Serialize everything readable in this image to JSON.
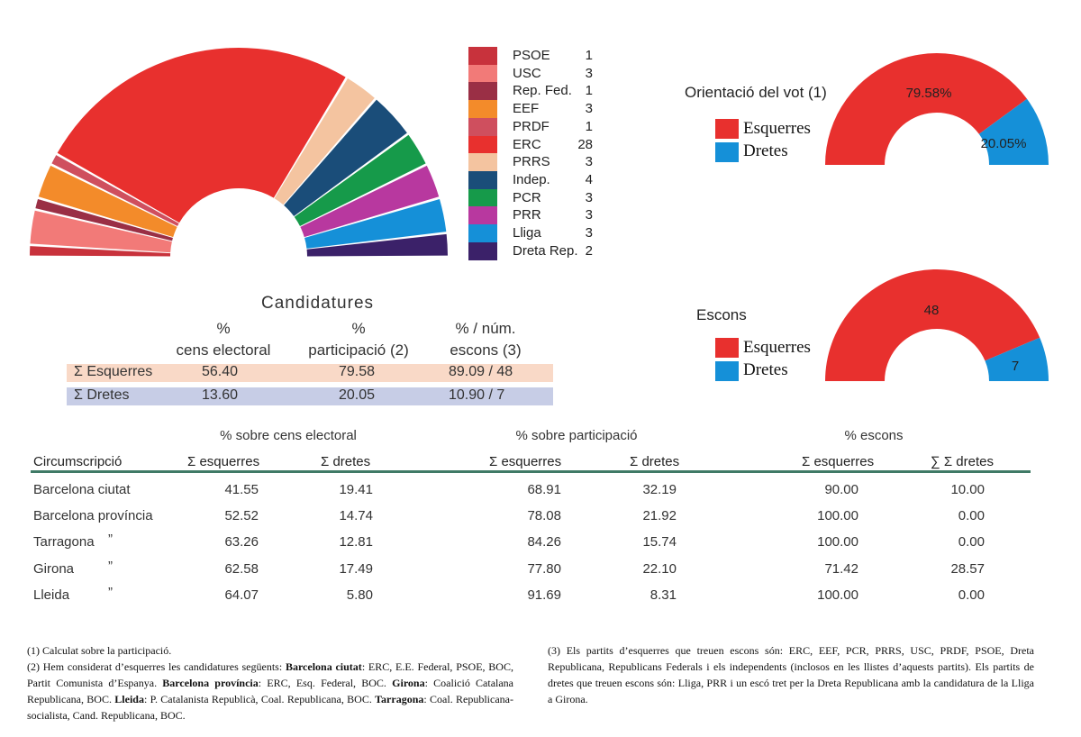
{
  "colors": {
    "PSOE": "#c8323c",
    "USC": "#f27a78",
    "Rep. Fed.": "#9a2f45",
    "EEF": "#f38b2a",
    "PRDF": "#cf4f5e",
    "ERC": "#e8302e",
    "PRRS": "#f4c4a0",
    "Indep.": "#1a4d79",
    "PCR": "#169a4a",
    "PRR": "#b8389f",
    "Lliga": "#1590d8",
    "Dreta Rep.": "#3b2169",
    "esquerres": "#e8302e",
    "dretes": "#1590d8",
    "esq_band": "#f9d9c7",
    "dre_band": "#c7cde6",
    "rule": "#3f7a66"
  },
  "chart_data": [
    {
      "type": "pie",
      "subtype": "parliament-half-donut",
      "legend_position": "right",
      "categories": [
        "PSOE",
        "USC",
        "Rep. Fed.",
        "EEF",
        "PRDF",
        "ERC",
        "PRRS",
        "Indep.",
        "PCR",
        "PRR",
        "Lliga",
        "Dreta Rep."
      ],
      "values": [
        1,
        3,
        1,
        3,
        1,
        28,
        3,
        4,
        3,
        3,
        3,
        2
      ],
      "legend": [
        {
          "name": "PSOE",
          "seats": "1"
        },
        {
          "name": "USC",
          "seats": "3"
        },
        {
          "name": "Rep. Fed.",
          "seats": "1"
        },
        {
          "name": "EEF",
          "seats": "3"
        },
        {
          "name": "PRDF",
          "seats": "1"
        },
        {
          "name": "ERC",
          "seats": "28"
        },
        {
          "name": "PRRS",
          "seats": "3"
        },
        {
          "name": "Indep.",
          "seats": "4"
        },
        {
          "name": "PCR",
          "seats": "3"
        },
        {
          "name": "PRR",
          "seats": "3"
        },
        {
          "name": "Lliga",
          "seats": "3"
        },
        {
          "name": "Dreta Rep.",
          "seats": "2"
        }
      ]
    },
    {
      "type": "pie",
      "subtype": "half-donut",
      "title": "Orientació del vot (1)",
      "categories": [
        "Esquerres",
        "Dretes"
      ],
      "values": [
        79.58,
        20.05
      ],
      "labels": [
        "79.58%",
        "20.05%"
      ]
    },
    {
      "type": "pie",
      "subtype": "half-donut",
      "title": "Escons",
      "categories": [
        "Esquerres",
        "Dretes"
      ],
      "values": [
        48,
        7
      ],
      "labels": [
        "48",
        "7"
      ]
    },
    {
      "type": "table",
      "title": "Candidatures",
      "headers": [
        [
          "%",
          "cens electoral"
        ],
        [
          "%",
          "participació (2)"
        ],
        [
          "% / núm.",
          "escons (3)"
        ]
      ],
      "rows": [
        {
          "label": "Σ Esquerres",
          "values": [
            "56.40",
            "79.58",
            "89.09 / 48"
          ]
        },
        {
          "label": "Σ Dretes",
          "values": [
            "13.60",
            "20.05",
            "10.90 / 7"
          ]
        }
      ]
    },
    {
      "type": "table",
      "groups": [
        "% sobre cens electoral",
        "% sobre participació",
        "% escons"
      ],
      "headers": [
        "Circumscripció",
        "Σ esquerres",
        "Σ dretes",
        "Σ esquerres",
        "Σ dretes",
        "Σ esquerres",
        "∑ Σ dretes"
      ],
      "rows": [
        {
          "name": "Barcelona ciutat",
          "ditto": "",
          "values": [
            "41.55",
            "19.41",
            "68.91",
            "32.19",
            "90.00",
            "10.00"
          ]
        },
        {
          "name": "Barcelona província",
          "ditto": "",
          "values": [
            "52.52",
            "14.74",
            "78.08",
            "21.92",
            "100.00",
            "0.00"
          ]
        },
        {
          "name": "Tarragona",
          "ditto": "”",
          "values": [
            "63.26",
            "12.81",
            "84.26",
            "15.74",
            "100.00",
            "0.00"
          ]
        },
        {
          "name": "Girona",
          "ditto": "”",
          "values": [
            "62.58",
            "17.49",
            "77.80",
            "22.10",
            "71.42",
            "28.57"
          ]
        },
        {
          "name": "Lleida",
          "ditto": "”",
          "values": [
            "64.07",
            "5.80",
            "91.69",
            "8.31",
            "100.00",
            "0.00"
          ]
        }
      ]
    }
  ],
  "orientacio": {
    "esq": "Esquerres",
    "dre": "Dretes"
  },
  "escons": {
    "esq": "Esquerres",
    "dre": "Dretes"
  },
  "notes": {
    "n1": "(1) Calculat sobre la participació.",
    "n2_a": "(2) Hem considerat d’esquerres les candidatures següents: ",
    "n2_b1": "Barcelona ciutat",
    "n2_c1": ": ERC, E.E. Federal, PSOE, BOC, Partit Comunista d’Espanya. ",
    "n2_b2": "Barcelona província",
    "n2_c2": ": ERC, Esq. Federal, BOC. ",
    "n2_b3": "Girona",
    "n2_c3": ": Coalició Catalana Republicana, BOC. ",
    "n2_b4": "Lleida",
    "n2_c4": ": P. Catalanista Republicà, Coal. Republicana, BOC. ",
    "n2_b5": "Tarragona",
    "n2_c5": ": Coal. Republicana-socialista, Cand. Republicana, BOC.",
    "n3": "(3) Els partits d’esquerres que treuen escons són: ERC, EEF, PCR, PRRS, USC, PRDF, PSOE, Dreta Republicana, Republicans Federals i els independents (inclosos en les llistes d’aquests partits). Els partits de dretes que treuen escons són: Lliga, PRR i un escó tret per la Dreta Republicana amb la candidatura de la Lliga a Girona."
  }
}
